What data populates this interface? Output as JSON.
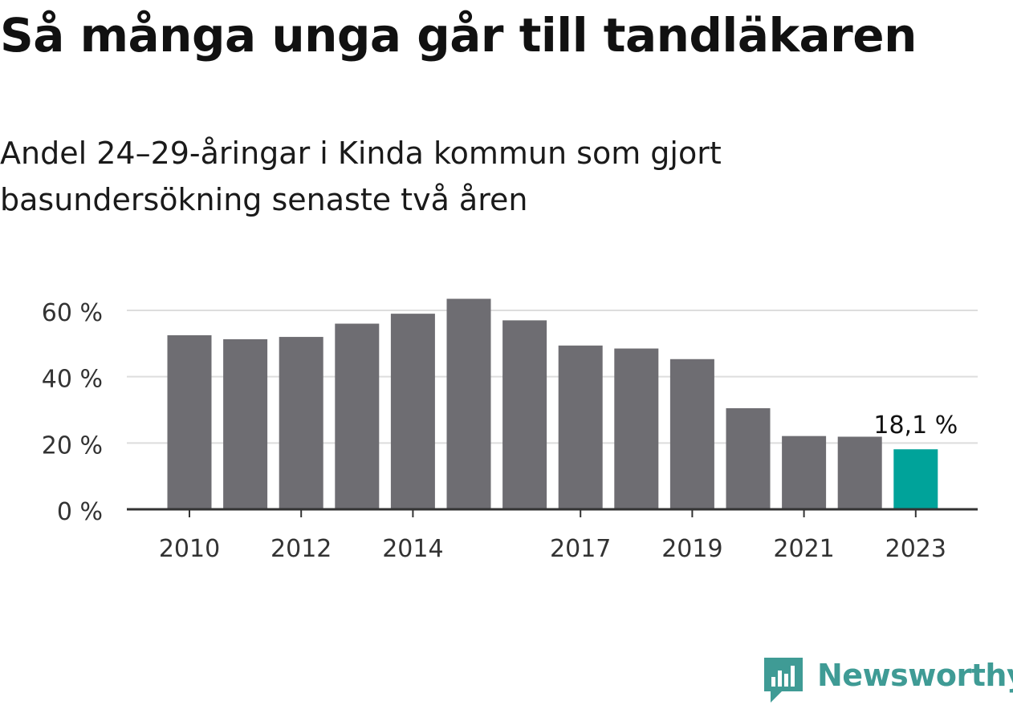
{
  "title": "Så många unga går till tandläkaren",
  "subtitle": "Andel 24–29-åringar i Kinda kommun som gjort basundersökning senaste två åren",
  "brand": "Newsworthy",
  "colors": {
    "bar": "#6e6d72",
    "highlight": "#00a39a",
    "grid": "#dddddd",
    "axis": "#333333",
    "brand": "#3f9b95"
  },
  "chart_data": {
    "type": "bar",
    "categories": [
      "2010",
      "2011",
      "2012",
      "2013",
      "2014",
      "2015",
      "2016",
      "2017",
      "2018",
      "2019",
      "2020",
      "2021",
      "2022",
      "2023"
    ],
    "values": [
      52.5,
      51.3,
      52.0,
      56.0,
      59.0,
      63.5,
      57.0,
      49.4,
      48.5,
      45.3,
      30.5,
      22.1,
      21.9,
      18.1
    ],
    "highlight_index": 13,
    "value_label": "18,1 %",
    "x_tick_labels": [
      "2010",
      "2012",
      "2014",
      "2017",
      "2019",
      "2021",
      "2023"
    ],
    "y_ticks": [
      0,
      20,
      40,
      60
    ],
    "y_tick_labels": [
      "0 %",
      "20 %",
      "40 %",
      "60 %"
    ],
    "ylim": [
      0,
      66
    ],
    "grid": true
  }
}
